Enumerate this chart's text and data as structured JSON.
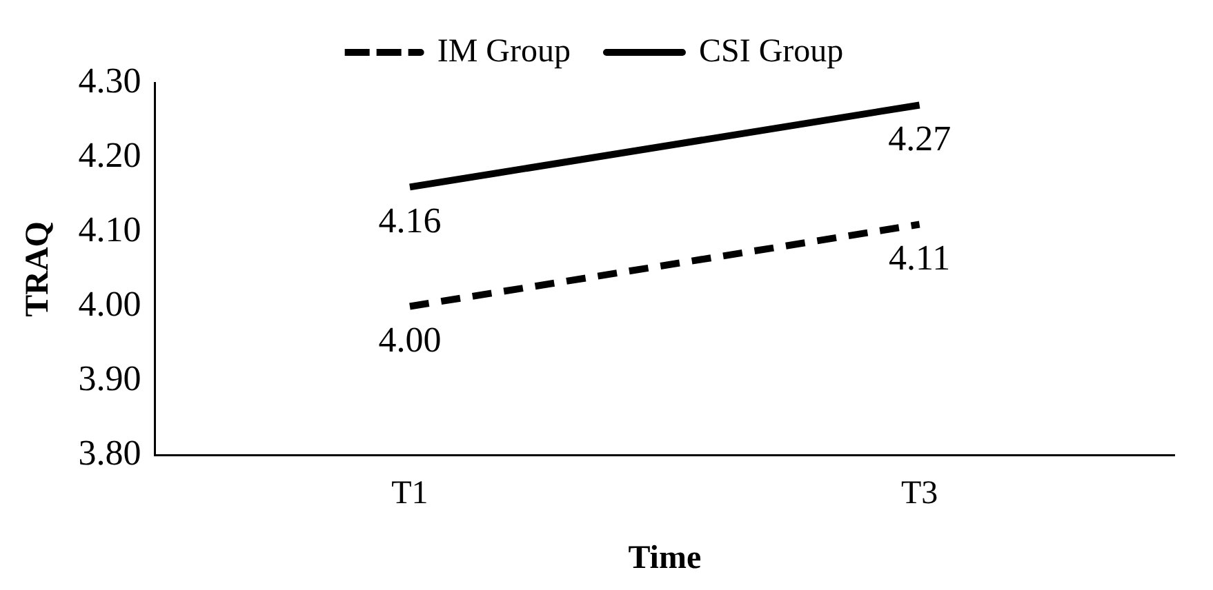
{
  "chart_data": {
    "type": "line",
    "xlabel": "Time",
    "ylabel": "TRAQ",
    "categories": [
      "T1",
      "T3"
    ],
    "series": [
      {
        "name": "IM Group",
        "color": "#000000",
        "values": [
          4.0,
          4.11
        ],
        "value_labels": [
          "4.00",
          "4.11"
        ],
        "line_style": "dashed"
      },
      {
        "name": "CSI Group",
        "color": "#000000",
        "values": [
          4.16,
          4.27
        ],
        "value_labels": [
          "4.16",
          "4.27"
        ],
        "line_style": "solid"
      }
    ],
    "ylim": [
      3.8,
      4.3
    ],
    "yticks": [
      {
        "value": 3.8,
        "label": "3.80"
      },
      {
        "value": 3.9,
        "label": "3.90"
      },
      {
        "value": 4.0,
        "label": "4.00"
      },
      {
        "value": 4.1,
        "label": "4.10"
      },
      {
        "value": 4.2,
        "label": "4.20"
      },
      {
        "value": 4.3,
        "label": "4.30"
      }
    ],
    "grid": false,
    "legend": "top",
    "marker": "none"
  }
}
